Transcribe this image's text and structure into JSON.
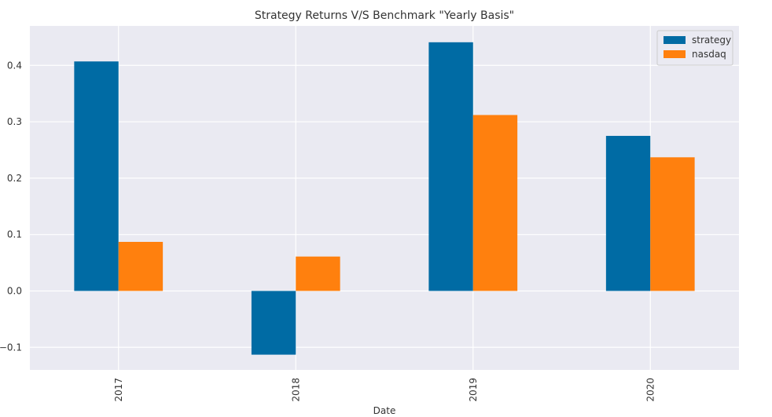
{
  "chart_data": {
    "type": "bar",
    "title": "Strategy Returns V/S Benchmark \"Yearly Basis\"",
    "xlabel": "Date",
    "ylabel": "",
    "categories": [
      "2017",
      "2018",
      "2019",
      "2020"
    ],
    "series": [
      {
        "name": "strategy",
        "color": "#006ba4",
        "values": [
          0.407,
          -0.113,
          0.441,
          0.275
        ]
      },
      {
        "name": "nasdaq",
        "color": "#ff800e",
        "values": [
          0.087,
          0.061,
          0.312,
          0.237
        ]
      }
    ],
    "ylim": [
      -0.14,
      0.47
    ],
    "yticks": [
      -0.1,
      0.0,
      0.1,
      0.2,
      0.3,
      0.4
    ],
    "ytick_labels": [
      "−0.1",
      "0.0",
      "0.1",
      "0.2",
      "0.3",
      "0.4"
    ],
    "grid": true,
    "legend_position": "top-right",
    "plot_background": "#eaeaf2",
    "grid_color": "#ffffff"
  }
}
